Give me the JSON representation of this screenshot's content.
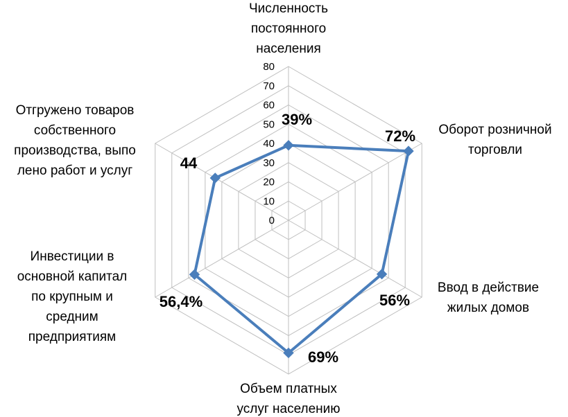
{
  "chart_data": {
    "type": "radar",
    "title": "",
    "axes": [
      {
        "label_lines": [
          "Численность",
          "постоянного",
          "населения"
        ]
      },
      {
        "label_lines": [
          "Оборот розничной",
          "торговли"
        ]
      },
      {
        "label_lines": [
          "Ввод в действие",
          "жилых домов"
        ]
      },
      {
        "label_lines": [
          "Объем платных",
          "услуг населению"
        ]
      },
      {
        "label_lines": [
          "Инвестиции в",
          "основной капитал",
          "по крупным и",
          "средним",
          "предприятиям"
        ]
      },
      {
        "label_lines": [
          "Отгружено товаров",
          "собственного",
          "производства, выпо",
          "лено работ и услуг"
        ]
      }
    ],
    "series": [
      {
        "values": [
          39,
          72,
          56,
          69,
          56.4,
          44
        ],
        "data_labels": [
          "39%",
          "72%",
          "56%",
          "69%",
          "56,4%",
          "44"
        ],
        "color": "#4a7ebb"
      }
    ],
    "rlim": [
      0,
      80
    ],
    "ticks": [
      0,
      10,
      20,
      30,
      40,
      50,
      60,
      70,
      80
    ],
    "tick_labels": [
      "0",
      "10",
      "20",
      "30",
      "40",
      "50",
      "60",
      "70",
      "80"
    ],
    "grid": true,
    "grid_color": "#bfbfbf",
    "legend": "none"
  }
}
